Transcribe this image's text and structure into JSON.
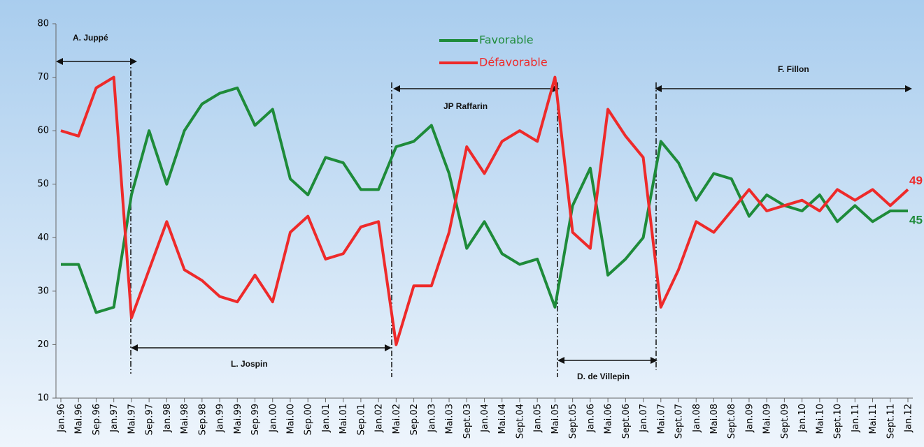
{
  "chart_data": {
    "type": "line",
    "categories": [
      "Jan.96",
      "Mai.96",
      "Sep.96",
      "Jan.97",
      "Mai.97",
      "Sep.97",
      "Jan.98",
      "Mai.98",
      "Sep.98",
      "Jan.99",
      "Mai.99",
      "Sep.99",
      "Jan.00",
      "Mai.00",
      "Sep.00",
      "Jan.01",
      "Mai.01",
      "Sep.01",
      "Jan.02",
      "Mai.02",
      "Sep.02",
      "Jan.03",
      "Mai.03",
      "Sept.03",
      "Jan.04",
      "Mai.04",
      "Sept.04",
      "Jan.05",
      "Mai.05",
      "Sept.05",
      "Jan.06",
      "Mai.06",
      "Sept.06",
      "Jan.07",
      "Mai.07",
      "Sept.07",
      "Jan.08",
      "Mai.08",
      "Sept.08",
      "Jan.09",
      "Mai.09",
      "Sept.09",
      "Jan.10",
      "Mai.10",
      "Sept.10",
      "Jan.11",
      "Mai.11",
      "Sept.11",
      "Jan.12"
    ],
    "series": [
      {
        "name": "Favorable",
        "color": "#1e8b3a",
        "values": [
          35,
          35,
          26,
          27,
          48,
          60,
          50,
          60,
          65,
          67,
          68,
          61,
          64,
          51,
          48,
          55,
          54,
          49,
          49,
          57,
          58,
          61,
          52,
          38,
          43,
          37,
          35,
          36,
          27,
          46,
          53,
          33,
          36,
          40,
          58,
          54,
          47,
          52,
          51,
          44,
          48,
          46,
          45,
          48,
          43,
          46,
          43,
          45,
          45
        ]
      },
      {
        "name": "Défavorable",
        "color": "#ee2a2a",
        "values": [
          60,
          59,
          68,
          70,
          25,
          34,
          43,
          34,
          32,
          29,
          28,
          33,
          28,
          41,
          44,
          36,
          37,
          42,
          43,
          20,
          31,
          31,
          41,
          57,
          52,
          58,
          60,
          58,
          70,
          41,
          38,
          64,
          59,
          55,
          27,
          34,
          43,
          41,
          45,
          49,
          45,
          46,
          47,
          45,
          49,
          47,
          49,
          46,
          49
        ]
      }
    ],
    "annotations": [
      "A. Juppé",
      "L. Jospin",
      "JP Raffarin",
      "D. de Villepin",
      "F. Fillon"
    ],
    "ylim": [
      10,
      80
    ],
    "yticks": [
      10,
      20,
      30,
      40,
      50,
      60,
      70,
      80
    ],
    "grid": false
  }
}
